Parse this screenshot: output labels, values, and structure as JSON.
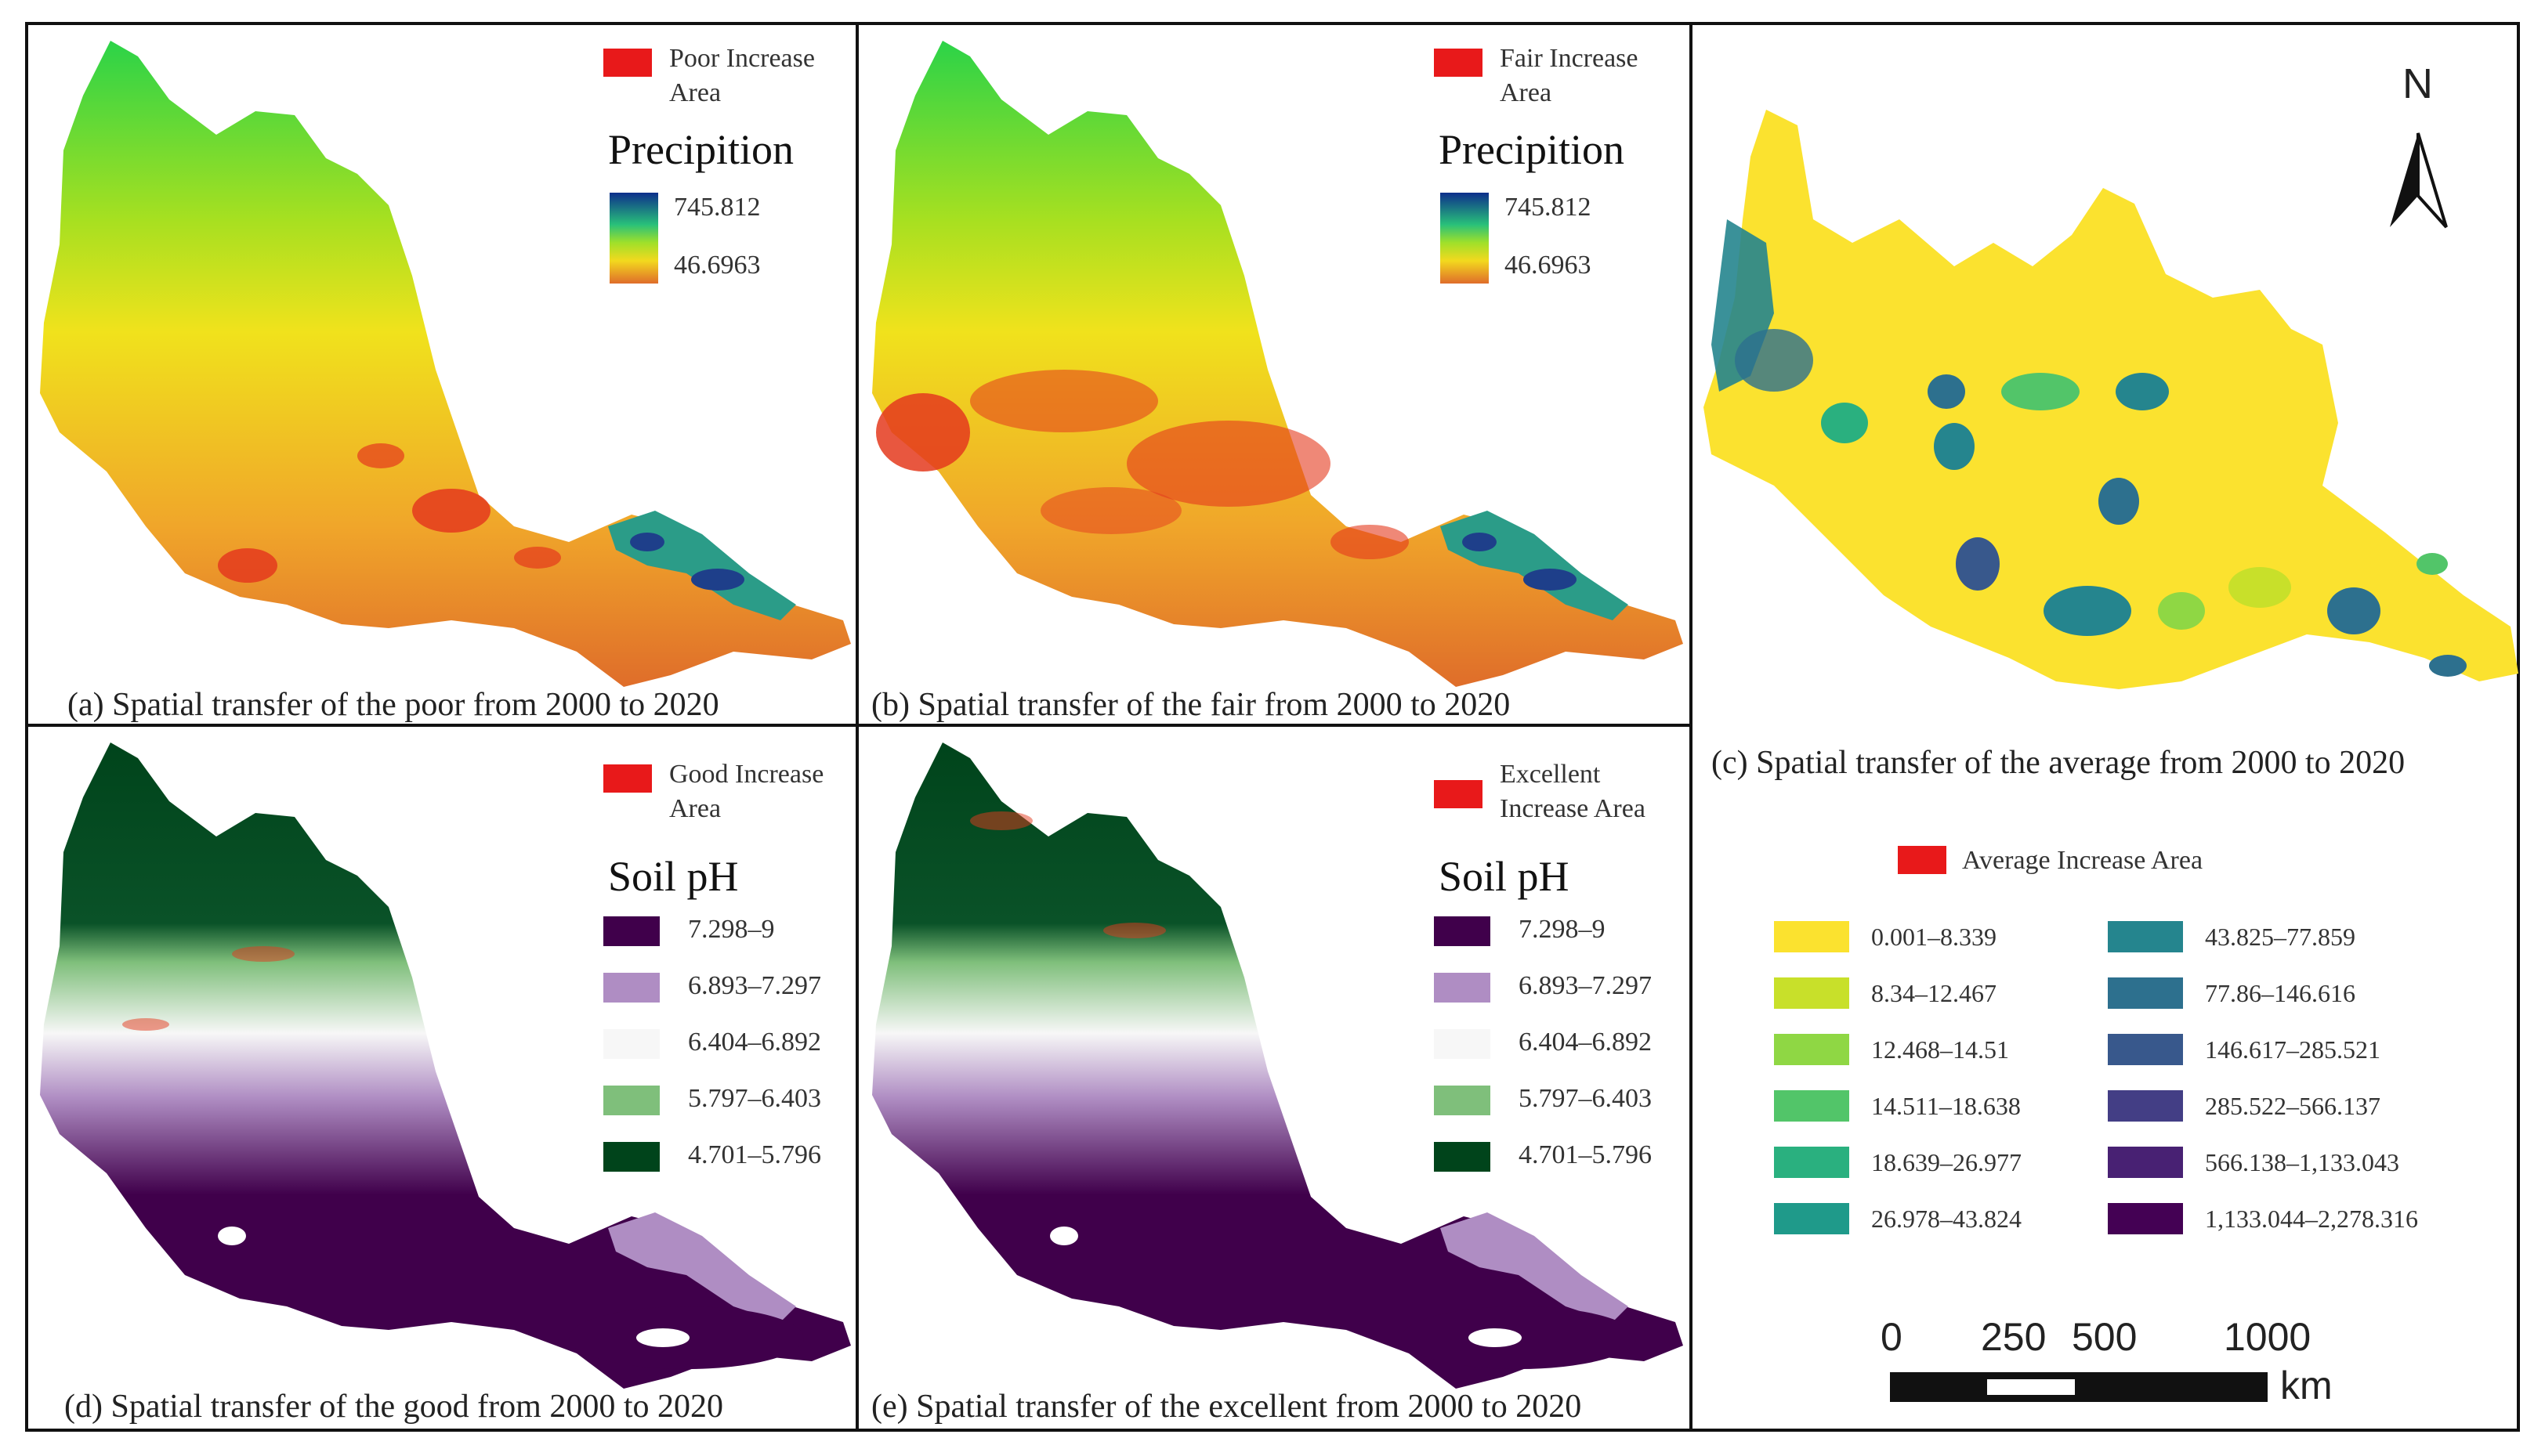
{
  "panels": {
    "a": {
      "caption": "(a) Spatial transfer of the poor from 2000 to 2020",
      "increase_label_line1": "Poor Increase",
      "increase_label_line2": "Area",
      "legend_title": "Precipition",
      "max_value": "745.812",
      "min_value": "46.6963"
    },
    "b": {
      "caption": "(b) Spatial transfer of the fair from 2000 to 2020",
      "increase_label_line1": "Fair Increase",
      "increase_label_line2": "Area",
      "legend_title": "Precipition",
      "max_value": "745.812",
      "min_value": "46.6963"
    },
    "c": {
      "caption": "(c) Spatial transfer of the average from 2000 to 2020",
      "increase_label": "Average Increase Area",
      "north": "N",
      "classes": [
        {
          "label": "0.001–8.339",
          "color": "#fbe22f"
        },
        {
          "label": "8.34–12.467",
          "color": "#c8e02a"
        },
        {
          "label": "12.468–14.51",
          "color": "#8fd744"
        },
        {
          "label": "14.511–18.638",
          "color": "#52c569"
        },
        {
          "label": "18.639–26.977",
          "color": "#2ab07f"
        },
        {
          "label": "26.978–43.824",
          "color": "#1f9a8a"
        },
        {
          "label": "43.825–77.859",
          "color": "#25858e"
        },
        {
          "label": "77.86–146.616",
          "color": "#2d708e"
        },
        {
          "label": "146.617–285.521",
          "color": "#38588c"
        },
        {
          "label": "285.522–566.137",
          "color": "#433e85"
        },
        {
          "label": "566.138–1,133.043",
          "color": "#482173"
        },
        {
          "label": "1,133.044–2,278.316",
          "color": "#440154"
        }
      ],
      "scale_ticks": [
        "0",
        "250",
        "500",
        "1000"
      ],
      "scale_unit": "km"
    },
    "d": {
      "caption": "(d) Spatial transfer of the good from 2000 to 2020",
      "increase_label_line1": "Good Increase",
      "increase_label_line2": "Area",
      "legend_title": "Soil pH"
    },
    "e": {
      "caption": "(e) Spatial transfer of the excellent from 2000 to 2020",
      "increase_label_line1": "Excellent",
      "increase_label_line2": "Increase Area",
      "legend_title": "Soil pH"
    }
  },
  "soil_ph_classes": [
    {
      "label": "7.298–9",
      "color": "#40004b"
    },
    {
      "label": "6.893–7.297",
      "color": "#af8dc3"
    },
    {
      "label": "6.404–6.892",
      "color": "#f7f7f7"
    },
    {
      "label": "5.797–6.403",
      "color": "#7fbf7b"
    },
    {
      "label": "4.701–5.796",
      "color": "#00441b"
    }
  ],
  "colors": {
    "increase": "#e8191a",
    "precip_high": "#1a4f8a",
    "precip_mid": "#3ccc2c",
    "precip_yellow": "#f5e31f",
    "precip_low": "#e0782a"
  }
}
